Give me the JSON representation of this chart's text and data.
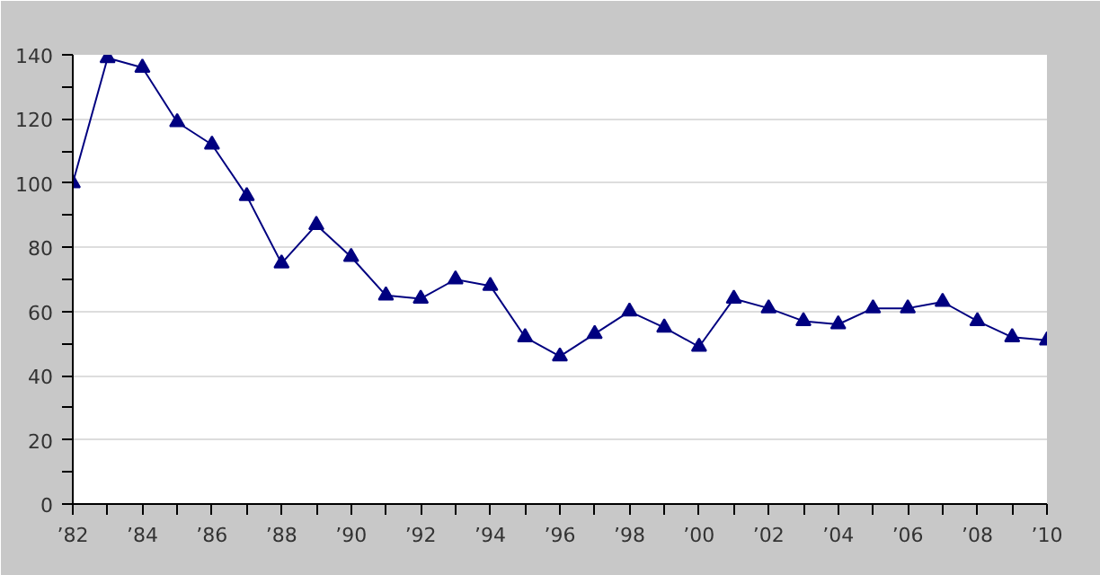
{
  "chart_data": {
    "type": "line",
    "x": [
      1982,
      1983,
      1984,
      1985,
      1986,
      1987,
      1988,
      1989,
      1990,
      1991,
      1992,
      1993,
      1994,
      1995,
      1996,
      1997,
      1998,
      1999,
      2000,
      2001,
      2002,
      2003,
      2004,
      2005,
      2006,
      2007,
      2008,
      2009,
      2010
    ],
    "series": [
      {
        "color": "#000080",
        "values": [
          100,
          139,
          136,
          119,
          112,
          96,
          75,
          87,
          77,
          65,
          64,
          70,
          68,
          52,
          46,
          53,
          60,
          55,
          49,
          64,
          61,
          57,
          56,
          61,
          61,
          63,
          57,
          52,
          51
        ]
      }
    ],
    "xlim": [
      1982,
      2010
    ],
    "xticks": [
      {
        "value": 1982,
        "label": "’82"
      },
      {
        "value": 1983,
        "label": null
      },
      {
        "value": 1984,
        "label": "’84"
      },
      {
        "value": 1985,
        "label": null
      },
      {
        "value": 1986,
        "label": "’86"
      },
      {
        "value": 1987,
        "label": null
      },
      {
        "value": 1988,
        "label": "’88"
      },
      {
        "value": 1989,
        "label": null
      },
      {
        "value": 1990,
        "label": "’90"
      },
      {
        "value": 1991,
        "label": null
      },
      {
        "value": 1992,
        "label": "’92"
      },
      {
        "value": 1993,
        "label": null
      },
      {
        "value": 1994,
        "label": "’94"
      },
      {
        "value": 1995,
        "label": null
      },
      {
        "value": 1996,
        "label": "’96"
      },
      {
        "value": 1997,
        "label": null
      },
      {
        "value": 1998,
        "label": "’98"
      },
      {
        "value": 1999,
        "label": null
      },
      {
        "value": 2000,
        "label": "’00"
      },
      {
        "value": 2001,
        "label": null
      },
      {
        "value": 2002,
        "label": "’02"
      },
      {
        "value": 2003,
        "label": null
      },
      {
        "value": 2004,
        "label": "’04"
      },
      {
        "value": 2005,
        "label": null
      },
      {
        "value": 2006,
        "label": "’06"
      },
      {
        "value": 2007,
        "label": null
      },
      {
        "value": 2008,
        "label": "’08"
      },
      {
        "value": 2009,
        "label": null
      },
      {
        "value": 2010,
        "label": "’10"
      }
    ],
    "ylim": [
      0,
      140
    ],
    "yticks": [
      0,
      {
        "value": 10,
        "label": null
      },
      20,
      {
        "value": 30,
        "label": null
      },
      40,
      {
        "value": 50,
        "label": null
      },
      60,
      {
        "value": 70,
        "label": null
      },
      80,
      {
        "value": 90,
        "label": null
      },
      100,
      {
        "value": 110,
        "label": null
      },
      120,
      {
        "value": 130,
        "label": null
      },
      140
    ],
    "grid": "y",
    "marker": "triangle",
    "line_style": "solid"
  }
}
